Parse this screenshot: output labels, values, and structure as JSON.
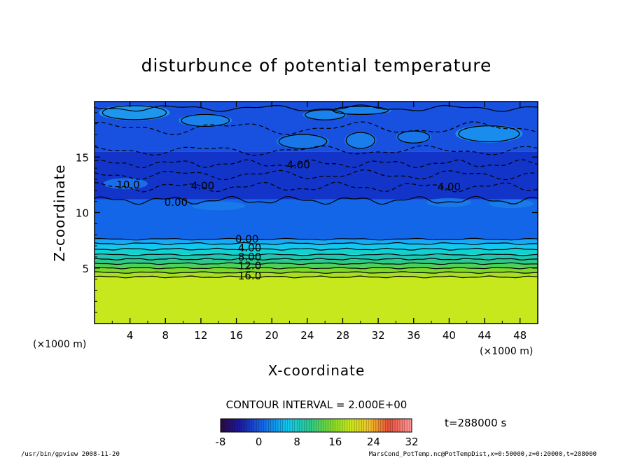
{
  "chart_data": {
    "type": "heatmap",
    "title": "disturbunce of potential temperature",
    "xlabel": "X-coordinate",
    "ylabel": "Z-coordinate",
    "x_unit_left": "(×1000 m)",
    "x_unit_right": "(×1000 m)",
    "xlim": [
      0,
      50
    ],
    "ylim": [
      0,
      20
    ],
    "x_ticks": [
      4,
      8,
      12,
      16,
      20,
      24,
      28,
      32,
      36,
      40,
      44,
      48
    ],
    "y_ticks": [
      5,
      10,
      15
    ],
    "contour_labels": [
      {
        "text": "0.00",
        "x": 17.2,
        "z": 7.6
      },
      {
        "text": "4.00",
        "x": 17.5,
        "z": 6.8
      },
      {
        "text": "8.00",
        "x": 17.5,
        "z": 6.0
      },
      {
        "text": "12.0",
        "x": 17.5,
        "z": 5.2
      },
      {
        "text": "16.0",
        "x": 17.5,
        "z": 4.3
      },
      {
        "text": "0.00",
        "x": 9.2,
        "z": 10.9
      },
      {
        "text": "4.00",
        "x": 12.2,
        "z": 12.4
      },
      {
        "text": "4.00",
        "x": 23.0,
        "z": 14.3
      },
      {
        "text": "4.00",
        "x": 40.0,
        "z": 12.3
      },
      {
        "text": "10.0",
        "x": 3.8,
        "z": 12.5
      }
    ],
    "contour_interval_label": "CONTOUR INTERVAL = 2.000E+00",
    "time_label": "t=288000 s",
    "colorbar": {
      "min": -8,
      "max": 32,
      "ticks": [
        -8,
        0,
        8,
        16,
        24,
        32
      ]
    },
    "field_levels": [
      {
        "z_from": 0,
        "z_to": 4.2,
        "value": 17,
        "color": "#c7e81c"
      },
      {
        "z_from": 4.2,
        "z_to": 4.6,
        "value": 15,
        "color": "#a6e01e"
      },
      {
        "z_from": 4.6,
        "z_to": 5.0,
        "value": 13,
        "color": "#7ed82a"
      },
      {
        "z_from": 5.0,
        "z_to": 5.4,
        "value": 11,
        "color": "#4fd05a"
      },
      {
        "z_from": 5.4,
        "z_to": 5.8,
        "value": 9,
        "color": "#2ec98a"
      },
      {
        "z_from": 5.8,
        "z_to": 6.2,
        "value": 7,
        "color": "#1fc7b0"
      },
      {
        "z_from": 6.2,
        "z_to": 6.7,
        "value": 5,
        "color": "#10d2d0"
      },
      {
        "z_from": 6.7,
        "z_to": 7.2,
        "value": 3,
        "color": "#12c8f0"
      },
      {
        "z_from": 7.2,
        "z_to": 7.6,
        "value": 1,
        "color": "#1aa8f5"
      },
      {
        "z_from": 7.6,
        "z_to": 11.2,
        "value": -2,
        "color": "#1466e8"
      },
      {
        "z_from": 11.2,
        "z_to": 15.5,
        "value": -5,
        "color": "#1234c8"
      },
      {
        "z_from": 15.5,
        "z_to": 20,
        "value": -3,
        "color": "#1850e0"
      }
    ]
  },
  "footer": {
    "left": "/usr/bin/gpview   2008-11-20",
    "right": "MarsCond_PotTemp.nc@PotTempDist,x=0:50000,z=0:20000,t=288000"
  }
}
